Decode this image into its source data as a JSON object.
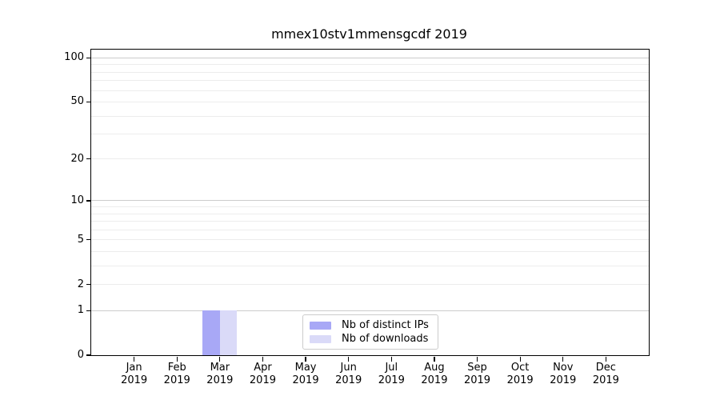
{
  "figure": {
    "title": "mmex10stv1mmensgcdf 2019",
    "background": "#ffffff"
  },
  "chart_data": {
    "type": "bar",
    "title": "mmex10stv1mmensgcdf 2019",
    "categories": [
      "Jan 2019",
      "Feb 2019",
      "Mar 2019",
      "Apr 2019",
      "May 2019",
      "Jun 2019",
      "Jul 2019",
      "Aug 2019",
      "Sep 2019",
      "Oct 2019",
      "Nov 2019",
      "Dec 2019"
    ],
    "series": [
      {
        "name": "Nb of distinct IPs",
        "color": "#a8a8f6",
        "values": [
          0,
          0,
          1,
          0,
          0,
          0,
          0,
          0,
          0,
          0,
          0,
          0
        ]
      },
      {
        "name": "Nb of downloads",
        "color": "#dadaf8",
        "values": [
          0,
          0,
          1,
          0,
          0,
          0,
          0,
          0,
          0,
          0,
          0,
          0
        ]
      }
    ],
    "xlabel": "",
    "ylabel": "",
    "yscale": "log1p",
    "ylim": [
      0,
      114
    ],
    "yticks": [
      0,
      1,
      2,
      5,
      10,
      20,
      50,
      100
    ],
    "grid_major": [
      1,
      10,
      100
    ],
    "grid_minor": [
      2,
      3,
      4,
      5,
      6,
      7,
      8,
      9,
      20,
      30,
      40,
      50,
      60,
      70,
      80,
      90
    ],
    "grid": "horizontal",
    "legend_position": "lower center"
  }
}
